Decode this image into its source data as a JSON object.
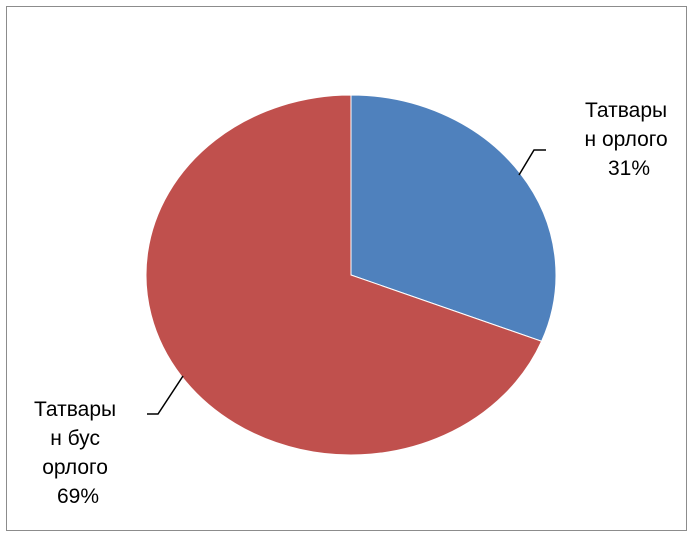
{
  "chart_data": {
    "type": "pie",
    "title": "",
    "slices": [
      {
        "label_lines": [
          "Татвары",
          "н орлого"
        ],
        "percent_label": "31%",
        "value": 31,
        "color": "#4f81bd"
      },
      {
        "label_lines": [
          "Татвары",
          "н бус",
          "орлого"
        ],
        "percent_label": "69%",
        "value": 69,
        "color": "#c0504d"
      }
    ],
    "legend": "none",
    "data_labels": "outside with leader lines",
    "start_angle_deg": 0,
    "direction": "clockwise"
  }
}
